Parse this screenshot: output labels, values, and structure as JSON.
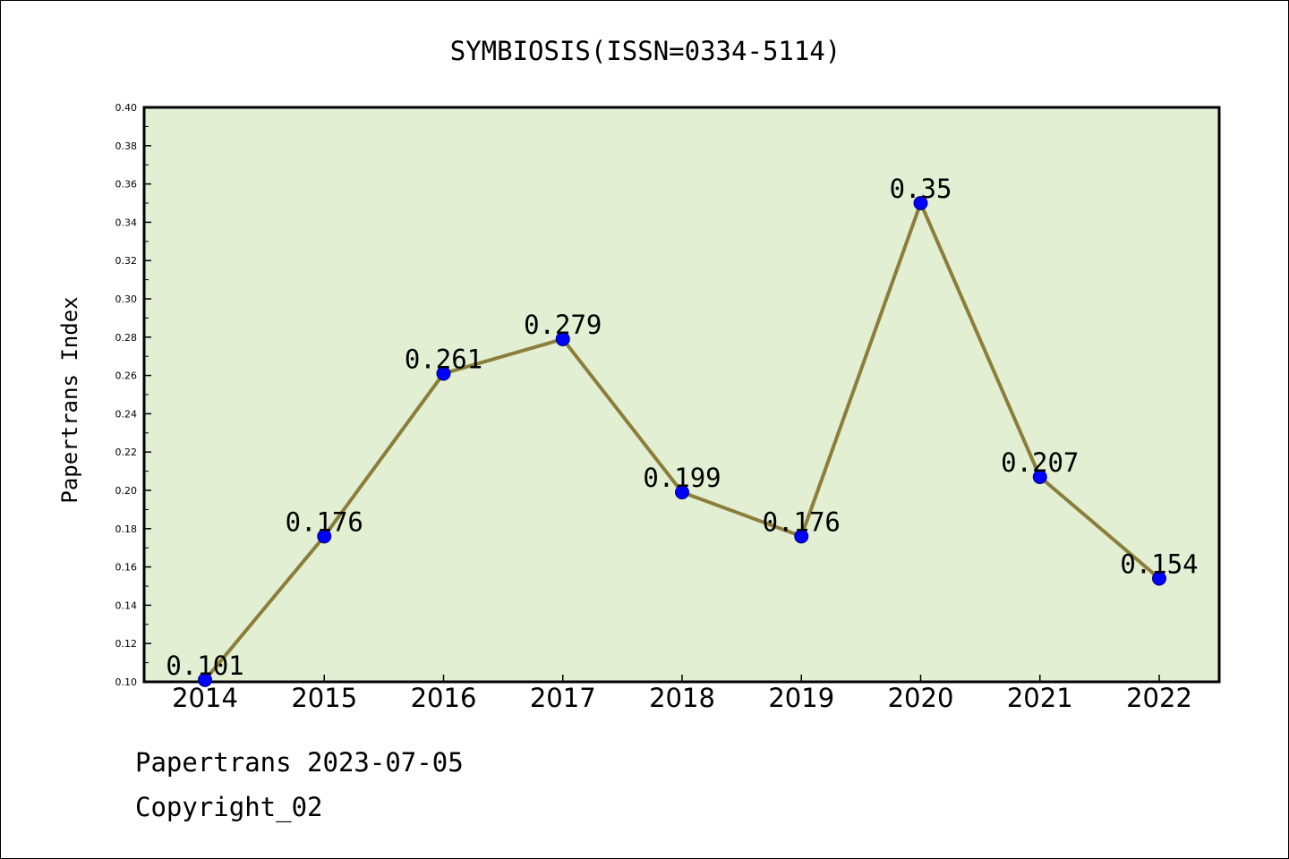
{
  "chart_data": {
    "type": "line",
    "title": "SYMBIOSIS(ISSN=0334-5114)",
    "xlabel": "",
    "ylabel": "Papertrans Index",
    "categories": [
      "2014",
      "2015",
      "2016",
      "2017",
      "2018",
      "2019",
      "2020",
      "2021",
      "2022"
    ],
    "series": [
      {
        "values": [
          0.101,
          0.176,
          0.261,
          0.279,
          0.199,
          0.176,
          0.35,
          0.207,
          0.154
        ],
        "data_labels": [
          "0.101",
          "0.176",
          "0.261",
          "0.279",
          "0.199",
          "0.176",
          "0.35",
          "0.207",
          "0.154"
        ]
      }
    ],
    "ylim": [
      0.1,
      0.4
    ],
    "yticks": [
      "0.10",
      "0.12",
      "0.14",
      "0.16",
      "0.18",
      "0.20",
      "0.22",
      "0.24",
      "0.26",
      "0.28",
      "0.30",
      "0.32",
      "0.34",
      "0.36",
      "0.38",
      "0.40"
    ],
    "grid": false,
    "legend": "none",
    "colors": {
      "plot_background": "#e2efd3",
      "line": "#8b7d3a",
      "marker": "#0000ff"
    }
  },
  "footer": {
    "date_line": "Papertrans 2023-07-05",
    "copyright": "Copyright_02"
  }
}
